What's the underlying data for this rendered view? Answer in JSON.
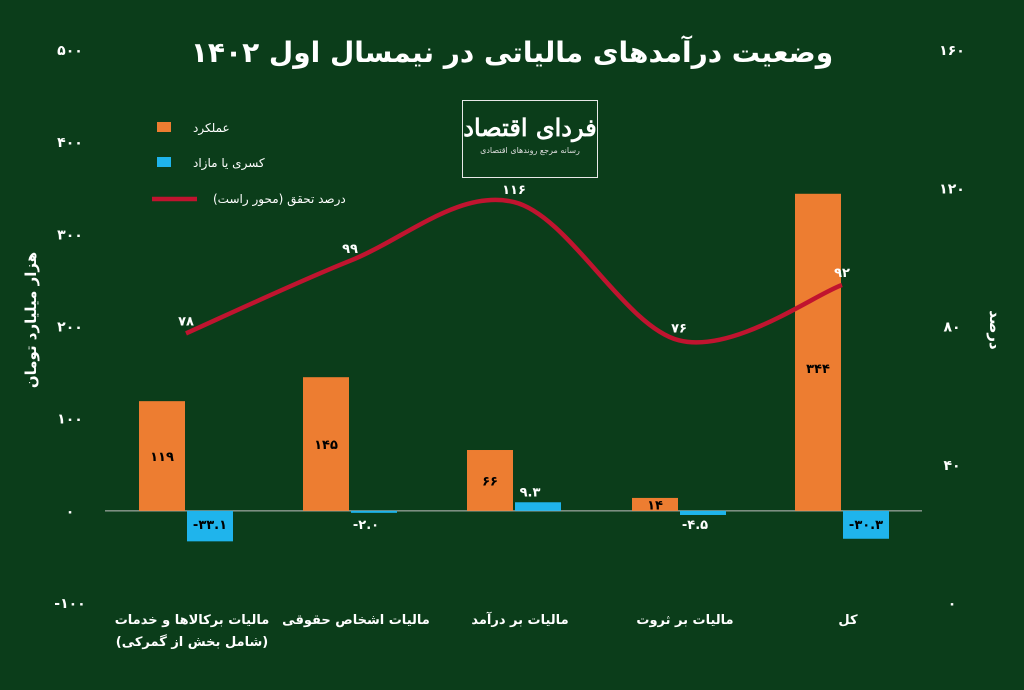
{
  "chart_data": {
    "type": "bar",
    "title": "وضعیت درآمدهای مالیاتی در نیمسال اول ۱۴۰۲",
    "ylabel_left": "هزار میلیارد تومان",
    "ylabel_right": "درصد",
    "ylim_left": [
      -100,
      500
    ],
    "yticks_left": [
      "-۱۰۰",
      "۰",
      "۱۰۰",
      "۲۰۰",
      "۳۰۰",
      "۴۰۰",
      "۵۰۰"
    ],
    "ylim_right": [
      0,
      160
    ],
    "yticks_right": [
      "۰",
      "۴۰",
      "۸۰",
      "۱۲۰",
      "۱۶۰"
    ],
    "categories": [
      [
        "مالیات برکالاها و خدمات",
        "(شامل بخش از گمرکی)"
      ],
      [
        "مالیات اشخاص حقوقی"
      ],
      [
        "مالیات بر درآمد"
      ],
      [
        "مالیات بر ثروت"
      ],
      [
        "کل"
      ]
    ],
    "series": [
      {
        "name": "عملکرد",
        "kind": "bar",
        "color": "#ed7d31",
        "values": [
          119,
          145,
          66,
          14,
          344
        ],
        "labels": [
          "۱۱۹",
          "۱۴۵",
          "۶۶",
          "۱۴",
          "۳۴۴"
        ]
      },
      {
        "name": "کسری یا مازاد",
        "kind": "bar",
        "color": "#1fb4ec",
        "values": [
          -33.1,
          -2.0,
          9.3,
          -4.5,
          -30.3
        ],
        "labels": [
          "-۳۳.۱",
          "-۲.۰",
          "۹.۳",
          "-۴.۵",
          "-۳۰.۳"
        ]
      },
      {
        "name": "درصد تحقق (محور راست)",
        "kind": "line",
        "axis": "right",
        "color": "#c0142f",
        "values": [
          78,
          99,
          116,
          76,
          92
        ],
        "labels": [
          "۷۸",
          "۹۹",
          "۱۱۶",
          "۷۶",
          "۹۲"
        ]
      }
    ],
    "grid": false,
    "legend": "top-left"
  },
  "logo": {
    "main": "فردای اقتصاد",
    "sub": "رسانه مرجع روندهای اقتصادی"
  }
}
